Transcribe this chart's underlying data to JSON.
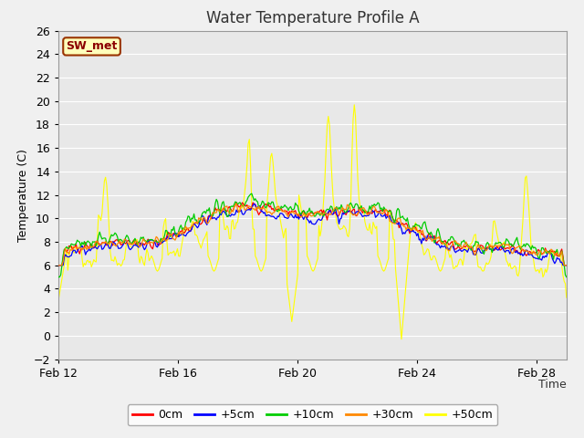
{
  "title": "Water Temperature Profile A",
  "xlabel": "Time",
  "ylabel": "Temperature (C)",
  "ylim": [
    -2,
    26
  ],
  "yticks": [
    -2,
    0,
    2,
    4,
    6,
    8,
    10,
    12,
    14,
    16,
    18,
    20,
    22,
    24,
    26
  ],
  "xtick_labels": [
    "Feb 12",
    "Feb 16",
    "Feb 20",
    "Feb 24",
    "Feb 28"
  ],
  "series_colors": {
    "0cm": "#ff0000",
    "+5cm": "#0000ff",
    "+10cm": "#00cc00",
    "+30cm": "#ff8800",
    "+50cm": "#ffff00"
  },
  "legend_label": "SW_met",
  "legend_bg": "#ffffbb",
  "legend_border": "#993300",
  "fig_bg": "#f0f0f0",
  "plot_bg": "#e8e8e8",
  "grid_color": "#ffffff",
  "title_fontsize": 12,
  "axis_label_fontsize": 9,
  "tick_fontsize": 9,
  "legend_fontsize": 9,
  "n_points": 432,
  "figwidth": 6.4,
  "figheight": 4.8,
  "dpi": 100
}
